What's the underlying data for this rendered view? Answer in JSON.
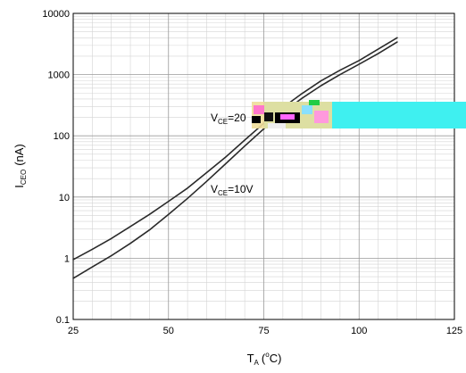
{
  "chart_data": {
    "type": "line",
    "xlabel": {
      "main": "T",
      "sub": "A",
      "open": "(",
      "sup": "o",
      "unit": "C)"
    },
    "ylabel": {
      "main": "I",
      "sub": "CEO",
      "unit": "(nA)"
    },
    "xlim": [
      25,
      125
    ],
    "ylim": [
      0.1,
      10000
    ],
    "y_scale": "log",
    "grid": "major and minor",
    "x_ticks": [
      25,
      50,
      75,
      100,
      125
    ],
    "y_ticks": [
      0.1,
      1,
      10,
      100,
      1000,
      10000
    ],
    "x_tick_labels": [
      "25",
      "50",
      "75",
      "100",
      "125"
    ],
    "y_tick_labels": [
      "0.1",
      "1",
      "10",
      "100",
      "1000",
      "10000"
    ],
    "series": [
      {
        "name": "VCE=20V",
        "label": {
          "main": "V",
          "sub": "CE",
          "rest": "=20"
        },
        "x": [
          25,
          30,
          35,
          40,
          45,
          50,
          55,
          60,
          65,
          70,
          75,
          80,
          85,
          90,
          95,
          100,
          105,
          110
        ],
        "y": [
          0.95,
          1.4,
          2.1,
          3.3,
          5.2,
          8.5,
          14,
          25,
          45,
          85,
          160,
          290,
          490,
          790,
          1180,
          1700,
          2600,
          4000
        ]
      },
      {
        "name": "VCE=10V",
        "label": {
          "main": "V",
          "sub": "CE",
          "rest": "=10V"
        },
        "x": [
          25,
          30,
          35,
          40,
          45,
          50,
          55,
          60,
          65,
          70,
          75,
          80,
          85,
          90,
          95,
          100,
          105,
          110
        ],
        "y": [
          0.47,
          0.72,
          1.1,
          1.75,
          2.9,
          5.2,
          9.5,
          18,
          35,
          68,
          130,
          240,
          410,
          660,
          1000,
          1480,
          2200,
          3400
        ]
      }
    ]
  }
}
